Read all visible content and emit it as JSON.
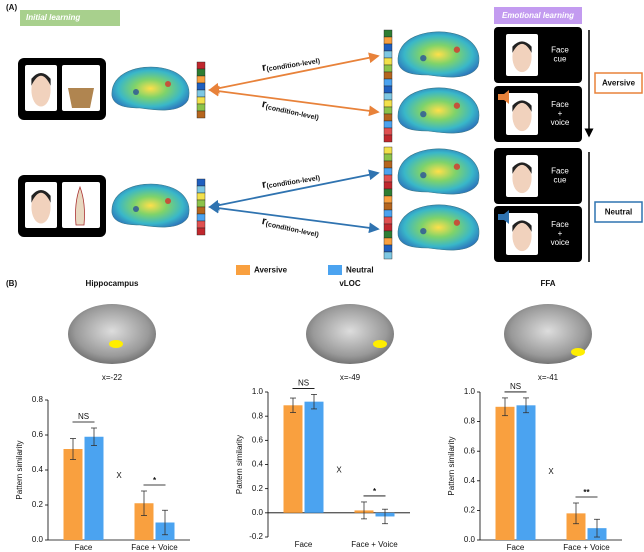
{
  "panel_a": {
    "label": "(A)",
    "initial_learning": "Initial learning",
    "emotional_learning": "Emotional learning",
    "r": "r",
    "r_subscript": "(condition-level)",
    "cue_lines": [
      "Face",
      "cue"
    ],
    "voice_lines": [
      "Face",
      "+",
      "voice"
    ],
    "conditions": [
      "Aversive",
      "Neutral"
    ]
  },
  "panel_b": {
    "label": "(B)"
  },
  "chart_data": [
    {
      "type": "bar",
      "title": "Hippocampus",
      "slice_label": "x=-22",
      "y_label": "Pattern similarity",
      "categories": [
        "Face",
        "Face + Voice"
      ],
      "group_annotations": [
        "NS",
        "*"
      ],
      "interaction_label": "X",
      "series": [
        {
          "name": "Aversive",
          "color": "#f9a03f",
          "values": [
            0.52,
            0.21
          ],
          "errors": [
            0.06,
            0.07
          ]
        },
        {
          "name": "Neutral",
          "color": "#4ba3f0",
          "values": [
            0.59,
            0.1
          ],
          "errors": [
            0.05,
            0.07
          ]
        }
      ],
      "ylim": [
        0,
        0.8
      ],
      "yticks": [
        {
          "value": 0,
          "label": "0.0"
        },
        0.2,
        0.4,
        0.6,
        0.8
      ]
    },
    {
      "type": "bar",
      "title": "vLOC",
      "slice_label": "x=-49",
      "y_label": "Pattern similarity",
      "categories": [
        "Face",
        "Face + Voice"
      ],
      "group_annotations": [
        "NS",
        "*"
      ],
      "interaction_label": "X",
      "series": [
        {
          "name": "Aversive",
          "color": "#f9a03f",
          "values": [
            0.89,
            0.02
          ],
          "errors": [
            0.06,
            0.07
          ]
        },
        {
          "name": "Neutral",
          "color": "#4ba3f0",
          "values": [
            0.92,
            -0.03
          ],
          "errors": [
            0.06,
            0.06
          ]
        }
      ],
      "ylim": [
        -0.2,
        1.0
      ],
      "yticks": [
        -0.2,
        {
          "value": 0,
          "label": "0.0"
        },
        0.2,
        0.4,
        0.6,
        0.8,
        {
          "value": 1,
          "label": "1.0"
        }
      ]
    },
    {
      "type": "bar",
      "title": "FFA",
      "slice_label": "x=-41",
      "y_label": "Pattern similarity",
      "categories": [
        "Face",
        "Face + Voice"
      ],
      "group_annotations": [
        "NS",
        "**"
      ],
      "interaction_label": "X",
      "series": [
        {
          "name": "Aversive",
          "color": "#f9a03f",
          "values": [
            0.9,
            0.18
          ],
          "errors": [
            0.06,
            0.07
          ]
        },
        {
          "name": "Neutral",
          "color": "#4ba3f0",
          "values": [
            0.91,
            0.08
          ],
          "errors": [
            0.05,
            0.06
          ]
        }
      ],
      "ylim": [
        0,
        1.0
      ],
      "yticks": [
        {
          "value": 0,
          "label": "0.0"
        },
        0.2,
        0.4,
        0.6,
        0.8,
        {
          "value": 1,
          "label": "1.0"
        }
      ]
    }
  ]
}
